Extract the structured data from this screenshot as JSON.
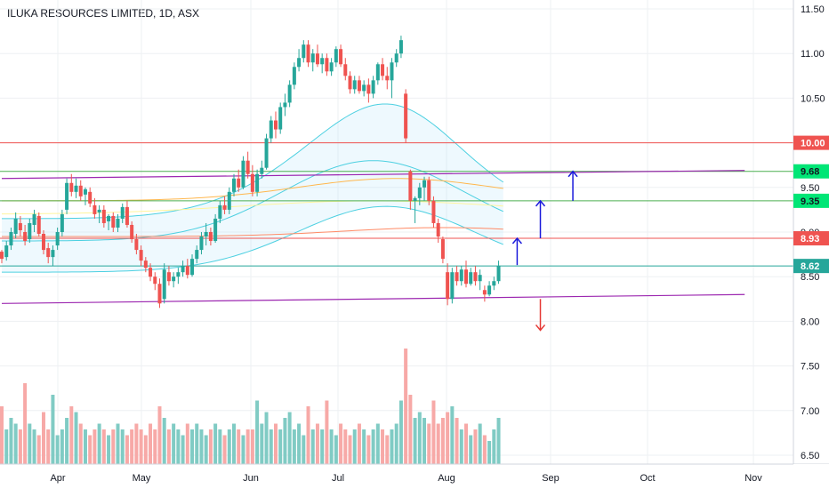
{
  "title": "ILUKA RESOURCES LIMITED, 1D, ASX",
  "chart_data": {
    "type": "candlestick",
    "symbol": "ILUKA RESOURCES LIMITED",
    "interval": "1D",
    "exchange": "ASX",
    "ylim": [
      6.45,
      11.55
    ],
    "y_ticks": [
      "11.50",
      "11.00",
      "10.50",
      "10.00",
      "9.50",
      "9.00",
      "8.50",
      "8.00",
      "7.50",
      "7.00",
      "6.50"
    ],
    "x_labels": [
      "Apr",
      "May",
      "Jun",
      "Jul",
      "Aug",
      "Sep",
      "Oct",
      "Nov"
    ],
    "colors": {
      "up": "#26a69a",
      "down": "#ef5350",
      "vol_up": "#80cbc4",
      "vol_down": "#f7a9a7"
    },
    "candles": [
      [
        0,
        8.78,
        8.8,
        8.65,
        8.7
      ],
      [
        1,
        8.72,
        8.9,
        8.68,
        8.85
      ],
      [
        2,
        8.85,
        9.05,
        8.8,
        9.0
      ],
      [
        3,
        8.98,
        9.22,
        8.93,
        9.15
      ],
      [
        4,
        9.1,
        9.18,
        8.95,
        9.02
      ],
      [
        5,
        9.0,
        9.08,
        8.85,
        8.9
      ],
      [
        6,
        8.92,
        9.15,
        8.88,
        9.1
      ],
      [
        7,
        9.08,
        9.25,
        9.0,
        9.2
      ],
      [
        8,
        9.18,
        9.22,
        8.95,
        8.98
      ],
      [
        9,
        8.98,
        9.02,
        8.75,
        8.8
      ],
      [
        10,
        8.82,
        8.88,
        8.65,
        8.72
      ],
      [
        11,
        8.72,
        8.85,
        8.62,
        8.8
      ],
      [
        12,
        8.85,
        9.05,
        8.8,
        9.0
      ],
      [
        13,
        9.0,
        9.25,
        8.95,
        9.2
      ],
      [
        14,
        9.25,
        9.6,
        9.2,
        9.55
      ],
      [
        15,
        9.55,
        9.65,
        9.4,
        9.45
      ],
      [
        16,
        9.45,
        9.6,
        9.38,
        9.52
      ],
      [
        17,
        9.52,
        9.58,
        9.35,
        9.4
      ],
      [
        18,
        9.42,
        9.5,
        9.3,
        9.48
      ],
      [
        19,
        9.45,
        9.5,
        9.28,
        9.32
      ],
      [
        20,
        9.3,
        9.38,
        9.15,
        9.2
      ],
      [
        21,
        9.22,
        9.3,
        9.1,
        9.25
      ],
      [
        22,
        9.25,
        9.3,
        9.05,
        9.1
      ],
      [
        23,
        9.12,
        9.2,
        9.02,
        9.18
      ],
      [
        24,
        9.18,
        9.22,
        9.0,
        9.05
      ],
      [
        25,
        9.05,
        9.2,
        9.0,
        9.15
      ],
      [
        26,
        9.15,
        9.32,
        9.1,
        9.28
      ],
      [
        27,
        9.28,
        9.35,
        9.05,
        9.08
      ],
      [
        28,
        9.08,
        9.12,
        8.88,
        8.92
      ],
      [
        29,
        8.92,
        8.98,
        8.75,
        8.8
      ],
      [
        30,
        8.8,
        8.85,
        8.62,
        8.68
      ],
      [
        31,
        8.68,
        8.72,
        8.55,
        8.6
      ],
      [
        32,
        8.6,
        8.65,
        8.45,
        8.5
      ],
      [
        33,
        8.5,
        8.55,
        8.35,
        8.42
      ],
      [
        34,
        8.42,
        8.48,
        8.15,
        8.2
      ],
      [
        35,
        8.25,
        8.65,
        8.2,
        8.58
      ],
      [
        36,
        8.55,
        8.62,
        8.4,
        8.45
      ],
      [
        37,
        8.45,
        8.55,
        8.38,
        8.5
      ],
      [
        38,
        8.5,
        8.6,
        8.42,
        8.55
      ],
      [
        39,
        8.55,
        8.68,
        8.5,
        8.62
      ],
      [
        40,
        8.62,
        8.7,
        8.48,
        8.52
      ],
      [
        41,
        8.52,
        8.75,
        8.5,
        8.7
      ],
      [
        42,
        8.7,
        8.85,
        8.65,
        8.8
      ],
      [
        43,
        8.8,
        9.0,
        8.75,
        8.95
      ],
      [
        44,
        8.95,
        9.1,
        8.85,
        9.0
      ],
      [
        45,
        9.0,
        9.05,
        8.85,
        8.9
      ],
      [
        46,
        8.9,
        9.2,
        8.88,
        9.15
      ],
      [
        47,
        9.15,
        9.35,
        9.1,
        9.3
      ],
      [
        48,
        9.3,
        9.4,
        9.2,
        9.25
      ],
      [
        49,
        9.25,
        9.5,
        9.2,
        9.45
      ],
      [
        50,
        9.45,
        9.65,
        9.4,
        9.6
      ],
      [
        51,
        9.6,
        9.7,
        9.45,
        9.5
      ],
      [
        52,
        9.5,
        9.85,
        9.48,
        9.8
      ],
      [
        53,
        9.8,
        9.9,
        9.6,
        9.65
      ],
      [
        54,
        9.65,
        9.75,
        9.4,
        9.45
      ],
      [
        55,
        9.45,
        9.7,
        9.4,
        9.65
      ],
      [
        56,
        9.65,
        9.8,
        9.6,
        9.72
      ],
      [
        57,
        9.72,
        10.1,
        9.7,
        10.05
      ],
      [
        58,
        10.05,
        10.3,
        10.0,
        10.25
      ],
      [
        59,
        10.25,
        10.35,
        10.05,
        10.15
      ],
      [
        60,
        10.15,
        10.45,
        10.1,
        10.4
      ],
      [
        61,
        10.4,
        10.55,
        10.3,
        10.45
      ],
      [
        62,
        10.45,
        10.7,
        10.4,
        10.65
      ],
      [
        63,
        10.65,
        10.9,
        10.6,
        10.85
      ],
      [
        64,
        10.85,
        11.05,
        10.8,
        10.95
      ],
      [
        65,
        10.95,
        11.15,
        10.9,
        11.1
      ],
      [
        66,
        11.1,
        11.15,
        10.85,
        10.9
      ],
      [
        67,
        10.9,
        11.05,
        10.8,
        11.0
      ],
      [
        68,
        11.0,
        11.1,
        10.85,
        10.88
      ],
      [
        69,
        10.88,
        11.0,
        10.78,
        10.95
      ],
      [
        70,
        10.95,
        11.0,
        10.75,
        10.8
      ],
      [
        71,
        10.8,
        10.95,
        10.75,
        10.9
      ],
      [
        72,
        10.9,
        11.08,
        10.85,
        11.05
      ],
      [
        73,
        11.05,
        11.1,
        10.85,
        10.88
      ],
      [
        74,
        10.88,
        10.95,
        10.7,
        10.75
      ],
      [
        75,
        10.75,
        10.8,
        10.55,
        10.6
      ],
      [
        76,
        10.6,
        10.75,
        10.55,
        10.7
      ],
      [
        77,
        10.7,
        10.75,
        10.55,
        10.58
      ],
      [
        78,
        10.58,
        10.7,
        10.52,
        10.65
      ],
      [
        79,
        10.65,
        10.72,
        10.45,
        10.55
      ],
      [
        80,
        10.55,
        10.75,
        10.5,
        10.7
      ],
      [
        81,
        10.7,
        10.9,
        10.65,
        10.88
      ],
      [
        82,
        10.88,
        10.95,
        10.7,
        10.75
      ],
      [
        83,
        10.75,
        10.85,
        10.6,
        10.7
      ],
      [
        84,
        10.7,
        10.95,
        10.5,
        10.9
      ],
      [
        85,
        10.9,
        11.05,
        10.85,
        11.0
      ],
      [
        86,
        11.0,
        11.2,
        10.95,
        11.15
      ],
      [
        87,
        10.55,
        10.6,
        10.0,
        10.05
      ],
      [
        88,
        9.68,
        9.7,
        9.25,
        9.35
      ],
      [
        89,
        9.35,
        9.4,
        9.1,
        9.38
      ],
      [
        90,
        9.38,
        9.55,
        9.3,
        9.5
      ],
      [
        91,
        9.5,
        9.62,
        9.35,
        9.58
      ],
      [
        92,
        9.58,
        9.62,
        9.3,
        9.35
      ],
      [
        93,
        9.35,
        9.4,
        9.05,
        9.1
      ],
      [
        94,
        9.1,
        9.15,
        8.88,
        8.95
      ],
      [
        95,
        8.92,
        8.95,
        8.65,
        8.7
      ],
      [
        96,
        8.55,
        8.65,
        8.18,
        8.25
      ],
      [
        97,
        8.25,
        8.6,
        8.2,
        8.55
      ],
      [
        98,
        8.55,
        8.62,
        8.4,
        8.45
      ],
      [
        99,
        8.45,
        8.62,
        8.4,
        8.58
      ],
      [
        100,
        8.58,
        8.68,
        8.38,
        8.42
      ],
      [
        101,
        8.42,
        8.6,
        8.4,
        8.55
      ],
      [
        102,
        8.55,
        8.62,
        8.4,
        8.45
      ],
      [
        103,
        8.45,
        8.58,
        8.35,
        8.52
      ],
      [
        104,
        8.35,
        8.4,
        8.22,
        8.3
      ],
      [
        105,
        8.3,
        8.45,
        8.28,
        8.4
      ],
      [
        106,
        8.4,
        8.5,
        8.35,
        8.45
      ],
      [
        107,
        8.45,
        8.68,
        8.42,
        8.62
      ]
    ],
    "volume": [
      0.5,
      0.3,
      0.4,
      0.35,
      0.3,
      0.7,
      0.35,
      0.3,
      0.25,
      0.45,
      0.3,
      0.6,
      0.25,
      0.3,
      0.4,
      0.5,
      0.45,
      0.35,
      0.3,
      0.25,
      0.3,
      0.35,
      0.3,
      0.25,
      0.3,
      0.35,
      0.3,
      0.25,
      0.3,
      0.35,
      0.3,
      0.25,
      0.35,
      0.3,
      0.5,
      0.4,
      0.3,
      0.35,
      0.3,
      0.25,
      0.35,
      0.3,
      0.35,
      0.3,
      0.25,
      0.3,
      0.35,
      0.3,
      0.25,
      0.3,
      0.35,
      0.3,
      0.25,
      0.3,
      0.3,
      0.55,
      0.35,
      0.45,
      0.3,
      0.35,
      0.3,
      0.4,
      0.45,
      0.3,
      0.35,
      0.25,
      0.5,
      0.3,
      0.35,
      0.3,
      0.55,
      0.3,
      0.25,
      0.35,
      0.3,
      0.25,
      0.3,
      0.35,
      0.3,
      0.25,
      0.3,
      0.35,
      0.3,
      0.25,
      0.3,
      0.35,
      0.55,
      1.0,
      0.6,
      0.4,
      0.45,
      0.4,
      0.35,
      0.55,
      0.35,
      0.4,
      0.45,
      0.5,
      0.4,
      0.3,
      0.35,
      0.25,
      0.3,
      0.35,
      0.25,
      0.2,
      0.3,
      0.4
    ],
    "horizontal_levels": [
      {
        "price": 10.0,
        "color": "#ef5350",
        "label": "10.00"
      },
      {
        "price": 9.68,
        "color": "#4caf50",
        "label": "9.68"
      },
      {
        "price": 9.35,
        "color": "#4caf50",
        "label": "9.35"
      },
      {
        "price": 8.93,
        "color": "#ef5350",
        "label": "8.93"
      },
      {
        "price": 8.62,
        "color": "#26a69a",
        "label": "8.62"
      }
    ],
    "channel": {
      "upper": [
        [
          0,
          9.6
        ],
        [
          160,
          9.69
        ]
      ],
      "lower": [
        [
          0,
          8.2
        ],
        [
          160,
          8.3
        ]
      ],
      "color": "#9c27b0"
    },
    "arrows": [
      {
        "x": 111,
        "from": 8.63,
        "to": 8.93,
        "dir": "up",
        "color": "#1a1adb"
      },
      {
        "x": 116,
        "from": 8.93,
        "to": 9.35,
        "dir": "up",
        "color": "#1a1adb"
      },
      {
        "x": 123,
        "from": 9.35,
        "to": 9.68,
        "dir": "up",
        "color": "#1a1adb"
      },
      {
        "x": 116,
        "from": 8.25,
        "to": 7.9,
        "dir": "down",
        "color": "#e53935"
      }
    ]
  }
}
